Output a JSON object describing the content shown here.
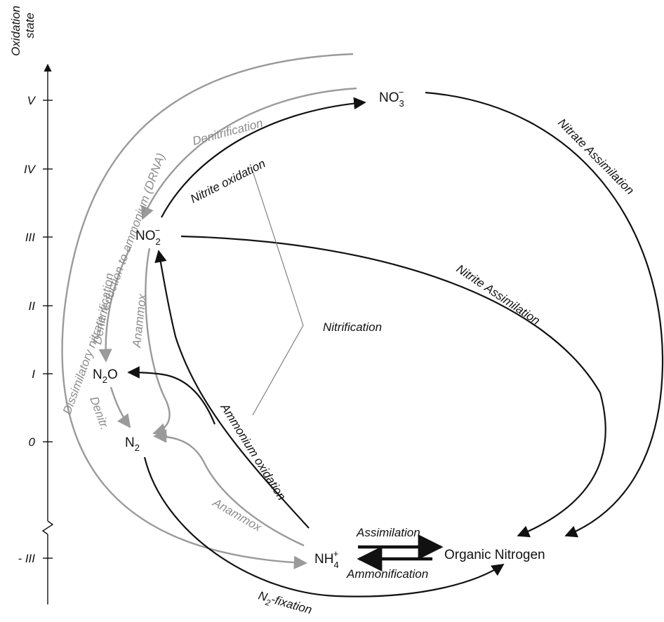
{
  "axis": {
    "title_line1": "Oxidation",
    "title_line2": "state",
    "ticks": [
      "V",
      "IV",
      "III",
      "II",
      "I",
      "0",
      "- III"
    ]
  },
  "species": {
    "no3": {
      "base": "NO",
      "sub": "3",
      "sup": "−"
    },
    "no2": {
      "base": "NO",
      "sub": "2",
      "sup": "−"
    },
    "n2o": {
      "pre": "N",
      "sub": "2",
      "post": "O"
    },
    "n2": {
      "base": "N",
      "sub": "2"
    },
    "nh4": {
      "base": "NH",
      "sub": "4",
      "sup": "+"
    },
    "organic": "Organic Nitrogen"
  },
  "processes": {
    "nitrate_assimilation": "Nitrate Assimilation",
    "nitrite_assimilation": "Nitrite Assimilation",
    "nitrite_oxidation": "Nitrite oxidation",
    "nitrification": "Nitrification",
    "ammonium_oxidation": "Ammonium oxidation",
    "denitrification_top": "Denitrification",
    "denitrification_left": "Denitrification",
    "denitr_short": "Denitr.",
    "anammox_vertical": "Anammox",
    "anammox_bottom": "Anammox",
    "drna": "Dissimilatory nitrate reduction to ammonium (DRNA)",
    "assimilation": "Assimilation",
    "ammonification": "Ammonification",
    "n2_fixation": {
      "base": "N",
      "sub": "2",
      "post": "-fixation"
    }
  },
  "colors": {
    "black_path": "#111111",
    "gray_path": "#9a9a9a",
    "gray_text": "#8c8c8c"
  }
}
